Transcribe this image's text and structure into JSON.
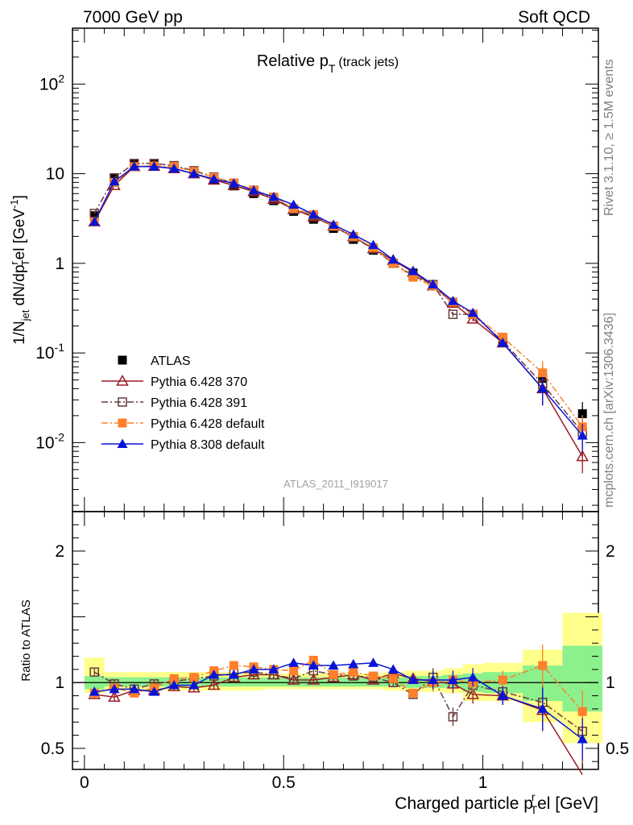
{
  "header": {
    "left": "7000 GeV pp",
    "right": "Soft QCD"
  },
  "side_labels": {
    "top": "Rivet 3.1.10, ≥ 1.5M events",
    "bottom": "mcplots.cern.ch [arXiv:1306.3436]"
  },
  "watermark": "ATLAS_2011_I919017",
  "colors": {
    "atlas": "#000000",
    "p6_370": "#9a1b24",
    "p6_391": "#6b3a3a",
    "p6_default": "#ff7f2a",
    "p8_default": "#0a14d6",
    "band_inner": "#8cf08c",
    "band_outer": "#ffff8c"
  },
  "chart_data": {
    "type": "scatter",
    "title_main": "Relative p",
    "title_sub": "T",
    "title_paren": "(track jets)",
    "xlabel_main": "Charged particle p",
    "xlabel_sup": "r",
    "xlabel_sub": "T",
    "xlabel_rest": "el [GeV]",
    "ylabel_main": "1/N",
    "ylabel_jet": "jet",
    "ylabel_mid": " dN/dp",
    "ylabel_sup": "r",
    "ylabel_sub": "T",
    "ylabel_rest": "el [GeV",
    "ylabel_exp": "-1",
    "ylabel_close": "]",
    "ratio_ylabel": "Ratio to ATLAS",
    "xlim": [
      -0.03,
      1.29
    ],
    "ylim_top": [
      0.0017,
      420
    ],
    "ylim_ratio": [
      0.34,
      2.3
    ],
    "log_y_top": true,
    "x_ticks": [
      "0",
      "0.5",
      "1"
    ],
    "x_tick_values": [
      0,
      0.5,
      1
    ],
    "y_ticks_top": [
      {
        "value": 0.01,
        "base": "10",
        "exp": "-2"
      },
      {
        "value": 0.1,
        "base": "10",
        "exp": "-1"
      },
      {
        "value": 1,
        "base": "1",
        "exp": ""
      },
      {
        "value": 10,
        "base": "10",
        "exp": ""
      },
      {
        "value": 100,
        "base": "10",
        "exp": "2"
      }
    ],
    "y_ticks_ratio": [
      {
        "value": 0.5,
        "label": "0.5"
      },
      {
        "value": 1,
        "label": "1"
      },
      {
        "value": 2,
        "label": "2"
      }
    ],
    "x": [
      0.025,
      0.075,
      0.125,
      0.175,
      0.225,
      0.275,
      0.325,
      0.375,
      0.425,
      0.475,
      0.525,
      0.575,
      0.625,
      0.675,
      0.725,
      0.775,
      0.825,
      0.875,
      0.925,
      0.975,
      1.05,
      1.15,
      1.25
    ],
    "bin_edges": [
      0,
      0.05,
      0.1,
      0.15,
      0.2,
      0.25,
      0.3,
      0.35,
      0.4,
      0.45,
      0.5,
      0.55,
      0.6,
      0.65,
      0.7,
      0.75,
      0.8,
      0.85,
      0.9,
      0.95,
      1.0,
      1.1,
      1.2,
      1.3
    ],
    "atlas_band_inner": [
      [
        0.95,
        1.05
      ],
      [
        0.97,
        1.04
      ],
      [
        0.97,
        1.04
      ],
      [
        0.97,
        1.04
      ],
      [
        0.97,
        1.04
      ],
      [
        0.97,
        1.04
      ],
      [
        0.97,
        1.04
      ],
      [
        0.97,
        1.04
      ],
      [
        0.97,
        1.04
      ],
      [
        0.97,
        1.04
      ],
      [
        0.97,
        1.04
      ],
      [
        0.97,
        1.04
      ],
      [
        0.97,
        1.04
      ],
      [
        0.97,
        1.04
      ],
      [
        0.97,
        1.04
      ],
      [
        0.97,
        1.04
      ],
      [
        0.96,
        1.05
      ],
      [
        0.96,
        1.05
      ],
      [
        0.96,
        1.06
      ],
      [
        0.93,
        1.07
      ],
      [
        0.92,
        1.08
      ],
      [
        0.86,
        1.13
      ],
      [
        0.78,
        1.28
      ]
    ],
    "atlas_band_outer": [
      [
        0.92,
        1.19
      ],
      [
        0.94,
        1.08
      ],
      [
        0.94,
        1.08
      ],
      [
        0.94,
        1.08
      ],
      [
        0.94,
        1.08
      ],
      [
        0.94,
        1.08
      ],
      [
        0.94,
        1.08
      ],
      [
        0.94,
        1.08
      ],
      [
        0.94,
        1.08
      ],
      [
        0.95,
        1.07
      ],
      [
        0.95,
        1.07
      ],
      [
        0.95,
        1.07
      ],
      [
        0.95,
        1.07
      ],
      [
        0.95,
        1.07
      ],
      [
        0.95,
        1.07
      ],
      [
        0.94,
        1.08
      ],
      [
        0.93,
        1.09
      ],
      [
        0.93,
        1.09
      ],
      [
        0.92,
        1.11
      ],
      [
        0.86,
        1.14
      ],
      [
        0.86,
        1.15
      ],
      [
        0.7,
        1.25
      ],
      [
        0.54,
        1.53
      ]
    ],
    "series": [
      {
        "name": "ATLAS",
        "key": "atlas",
        "marker": "square-filled",
        "line": "none",
        "values": [
          3.4,
          8.8,
          13.0,
          13.0,
          12.0,
          10.4,
          8.6,
          7.3,
          6.0,
          5.0,
          3.8,
          3.1,
          2.45,
          1.85,
          1.4,
          1.0,
          0.78,
          0.56,
          0.37,
          0.27,
          0.145,
          0.052,
          0.021
        ],
        "ratio": [
          1,
          1,
          1,
          1,
          1,
          1,
          1,
          1,
          1,
          1,
          1,
          1,
          1,
          1,
          1,
          1,
          1,
          1,
          1,
          1,
          1,
          1,
          1
        ]
      },
      {
        "name": "Pythia 6.428 370",
        "key": "p6_370",
        "marker": "triangle-open",
        "line": "solid",
        "values": [
          2.9,
          7.4,
          12.0,
          12.1,
          11.4,
          10.0,
          8.5,
          7.4,
          6.3,
          5.2,
          4.0,
          3.3,
          2.6,
          1.98,
          1.46,
          1.08,
          0.8,
          0.56,
          0.36,
          0.24,
          0.13,
          0.04,
          0.007
        ],
        "ratio": [
          0.91,
          0.89,
          0.94,
          0.94,
          0.97,
          0.96,
          0.98,
          1.04,
          1.06,
          1.06,
          1.02,
          1.02,
          1.04,
          1.06,
          1.02,
          1.07,
          1.03,
          1.01,
          0.99,
          0.91,
          0.9,
          0.79,
          0.3
        ]
      },
      {
        "name": "Pythia 6.428 391",
        "key": "p6_391",
        "marker": "square-open",
        "line": "dashdot",
        "values": [
          3.6,
          9.0,
          13.0,
          13.0,
          12.3,
          10.8,
          9.2,
          7.8,
          6.5,
          5.4,
          4.0,
          3.4,
          2.6,
          1.95,
          1.45,
          1.0,
          0.73,
          0.58,
          0.27,
          0.27,
          0.135,
          0.045,
          0.013
        ],
        "ratio": [
          1.08,
          0.99,
          0.95,
          0.99,
          1.01,
          1.03,
          1.05,
          1.07,
          1.08,
          1.06,
          1.03,
          1.09,
          1.06,
          1.05,
          1.04,
          1.0,
          0.91,
          1.04,
          0.74,
          0.98,
          0.93,
          0.85,
          0.63
        ]
      },
      {
        "name": "Pythia 6.428 default",
        "key": "p6_default",
        "marker": "square-filled",
        "line": "dashdot",
        "values": [
          2.9,
          8.0,
          12.0,
          12.2,
          12.0,
          10.6,
          9.1,
          7.9,
          6.6,
          5.5,
          4.1,
          3.5,
          2.6,
          2.0,
          1.5,
          1.0,
          0.7,
          0.56,
          0.37,
          0.27,
          0.15,
          0.06,
          0.015
        ],
        "ratio": [
          0.92,
          0.96,
          0.92,
          0.96,
          1.03,
          1.04,
          1.09,
          1.13,
          1.12,
          1.1,
          1.09,
          1.17,
          1.06,
          1.08,
          1.05,
          1.03,
          0.92,
          1.0,
          1.02,
          1.0,
          1.02,
          1.13,
          0.78
        ]
      },
      {
        "name": "Pythia 8.308 default",
        "key": "p8_default",
        "marker": "triangle-filled",
        "line": "solid",
        "values": [
          2.9,
          8.2,
          12.0,
          12.0,
          11.4,
          10.0,
          8.7,
          7.8,
          6.5,
          5.5,
          4.5,
          3.5,
          2.7,
          2.1,
          1.6,
          1.1,
          0.82,
          0.58,
          0.38,
          0.28,
          0.13,
          0.04,
          0.012
        ],
        "ratio": [
          0.93,
          0.95,
          0.95,
          0.93,
          0.98,
          0.98,
          1.06,
          1.06,
          1.1,
          1.1,
          1.15,
          1.13,
          1.13,
          1.14,
          1.15,
          1.1,
          1.02,
          1.02,
          1.02,
          1.04,
          0.9,
          0.8,
          0.57
        ]
      }
    ]
  }
}
